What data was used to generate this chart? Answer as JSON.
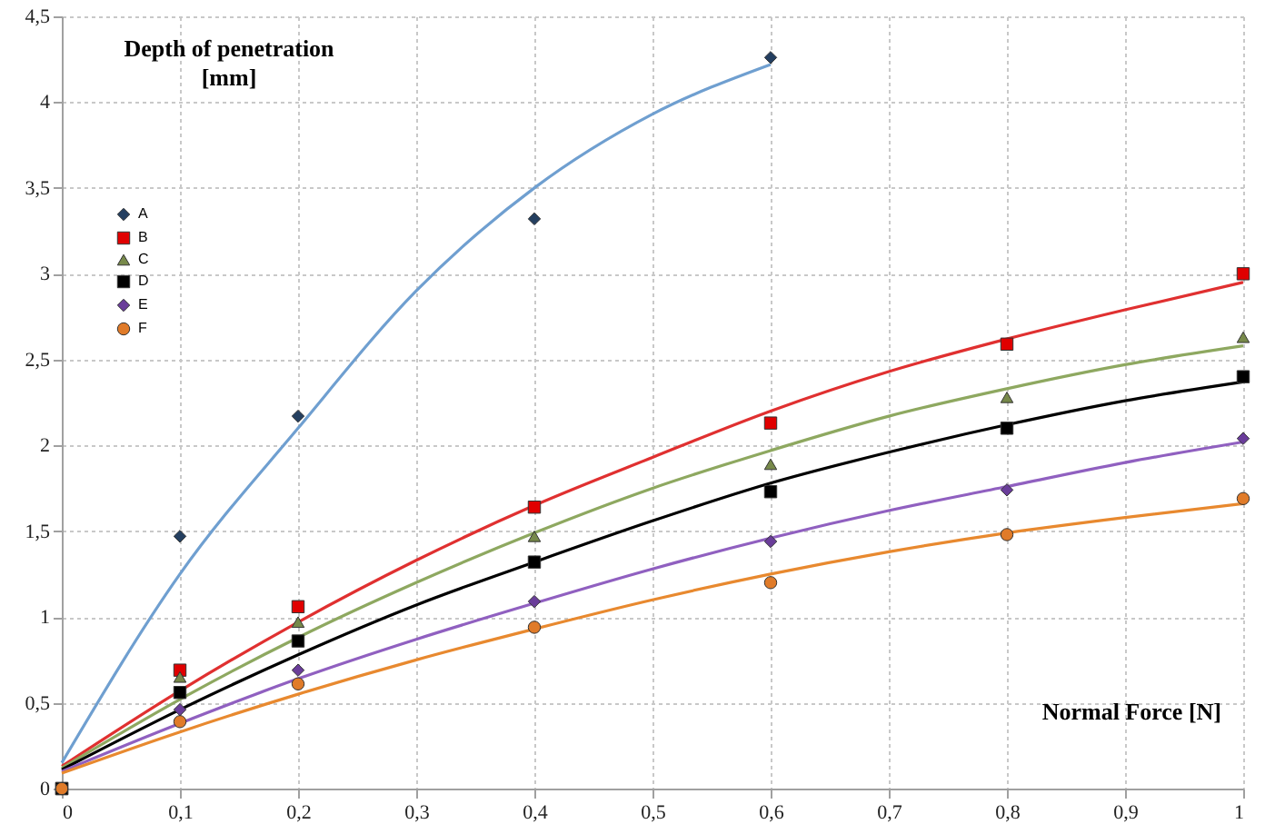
{
  "chart_data": {
    "type": "scatter",
    "ylabel": "Depth of penetration [mm]",
    "xlabel": "Normal Force [N]",
    "xlim": [
      0,
      1
    ],
    "xticks": [
      0,
      {
        "value": 0.1,
        "label": "0,1"
      },
      {
        "value": 0.2,
        "label": "0,2"
      },
      {
        "value": 0.3,
        "label": "0,3"
      },
      {
        "value": 0.4,
        "label": "0,4"
      },
      {
        "value": 0.5,
        "label": "0,5"
      },
      {
        "value": 0.6,
        "label": "0,6"
      },
      {
        "value": 0.7,
        "label": "0,7"
      },
      {
        "value": 0.8,
        "label": "0,8"
      },
      {
        "value": 0.9,
        "label": "0,9"
      },
      1
    ],
    "ylim": [
      0,
      4.5
    ],
    "yticks": [
      0,
      {
        "value": 0.5,
        "label": "0,5"
      },
      1,
      {
        "value": 1.5,
        "label": "1,5"
      },
      2,
      {
        "value": 2.5,
        "label": "2,5"
      },
      3,
      {
        "value": 3.5,
        "label": "3,5"
      },
      4,
      {
        "value": 4.5,
        "label": "4,5"
      }
    ],
    "grid": true,
    "legend": "top left",
    "series": [
      {
        "name": "A",
        "marker": "diamond",
        "color": "#243f60",
        "x": [
          0.1,
          0.2,
          0.4,
          0.6
        ],
        "values": [
          1.47,
          2.17,
          3.32,
          4.26
        ]
      },
      {
        "name": "B",
        "marker": "square",
        "color": "#e00000",
        "x": [
          0,
          0.1,
          0.2,
          0.4,
          0.6,
          0.8,
          1
        ],
        "values": [
          0,
          0.69,
          1.06,
          1.64,
          2.13,
          2.59,
          3.0
        ]
      },
      {
        "name": "C",
        "marker": "triangle",
        "color": "#77894a",
        "x": [
          0.1,
          0.2,
          0.4,
          0.6,
          0.8,
          1
        ],
        "values": [
          0.65,
          0.97,
          1.47,
          1.89,
          2.28,
          2.63
        ]
      },
      {
        "name": "D",
        "marker": "square",
        "color": "#000000",
        "x": [
          0,
          0.1,
          0.2,
          0.4,
          0.6,
          0.8,
          1
        ],
        "values": [
          0,
          0.56,
          0.86,
          1.32,
          1.73,
          2.1,
          2.4
        ]
      },
      {
        "name": "E",
        "marker": "diamond",
        "color": "#6a3d9a",
        "x": [
          0.1,
          0.2,
          0.4,
          0.6,
          0.8,
          1
        ],
        "values": [
          0.46,
          0.69,
          1.09,
          1.44,
          1.74,
          2.04
        ]
      },
      {
        "name": "F",
        "marker": "circle",
        "color": "#e07b29",
        "x": [
          0,
          0.1,
          0.2,
          0.4,
          0.6,
          0.8,
          1
        ],
        "values": [
          0,
          0.39,
          0.61,
          0.94,
          1.2,
          1.48,
          1.69
        ]
      },
      {
        "type": "line",
        "color": "#6f9fd0",
        "x": [
          0,
          0.1,
          0.2,
          0.3,
          0.4,
          0.5,
          0.6
        ],
        "values": [
          0.15,
          1.25,
          2.1,
          2.9,
          3.5,
          3.93,
          4.22
        ]
      },
      {
        "type": "line",
        "color": "#e03030",
        "x": [
          0,
          0.1,
          0.2,
          0.3,
          0.4,
          0.5,
          0.6,
          0.7,
          0.8,
          0.9,
          1
        ],
        "values": [
          0.13,
          0.57,
          0.97,
          1.33,
          1.65,
          1.93,
          2.2,
          2.43,
          2.62,
          2.79,
          2.95
        ]
      },
      {
        "type": "line",
        "color": "#8ea860",
        "x": [
          0,
          0.1,
          0.2,
          0.3,
          0.4,
          0.5,
          0.6,
          0.7,
          0.8,
          0.9,
          1
        ],
        "values": [
          0.12,
          0.52,
          0.88,
          1.2,
          1.49,
          1.75,
          1.97,
          2.17,
          2.33,
          2.47,
          2.58
        ]
      },
      {
        "type": "line",
        "color": "#000000",
        "x": [
          0,
          0.1,
          0.2,
          0.3,
          0.4,
          0.5,
          0.6,
          0.7,
          0.8,
          0.9,
          1
        ],
        "values": [
          0.11,
          0.46,
          0.78,
          1.07,
          1.32,
          1.56,
          1.78,
          1.96,
          2.12,
          2.26,
          2.37
        ]
      },
      {
        "type": "line",
        "color": "#9060c0",
        "x": [
          0,
          0.1,
          0.2,
          0.3,
          0.4,
          0.5,
          0.6,
          0.7,
          0.8,
          0.9,
          1
        ],
        "values": [
          0.1,
          0.38,
          0.64,
          0.87,
          1.08,
          1.28,
          1.46,
          1.62,
          1.76,
          1.9,
          2.02
        ]
      },
      {
        "type": "line",
        "color": "#e8892f",
        "x": [
          0,
          0.1,
          0.2,
          0.3,
          0.4,
          0.5,
          0.6,
          0.7,
          0.8,
          0.9,
          1
        ],
        "values": [
          0.09,
          0.33,
          0.55,
          0.75,
          0.93,
          1.1,
          1.25,
          1.38,
          1.49,
          1.58,
          1.66
        ]
      }
    ]
  }
}
